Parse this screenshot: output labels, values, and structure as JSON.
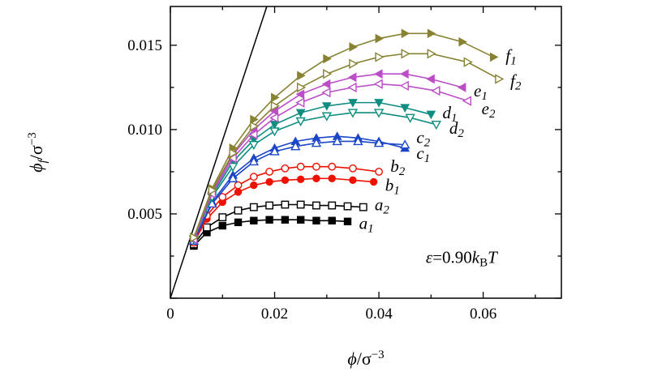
{
  "figure": {
    "kind": "scientific-plot",
    "background": "#ffffff"
  },
  "chart_data": {
    "type": "line",
    "title": "",
    "xlabel_parts": {
      "sym": "ϕ",
      "mid": "/σ",
      "sup": "−3"
    },
    "ylabel_parts": {
      "sym": "ϕ",
      "sub": "f",
      "mid": "/σ",
      "sup": "−3"
    },
    "xlim": [
      0,
      0.075
    ],
    "ylim": [
      0,
      0.0173
    ],
    "xticks": [
      {
        "v": 0,
        "label": "0"
      },
      {
        "v": 0.02,
        "label": "0.02"
      },
      {
        "v": 0.04,
        "label": "0.04"
      },
      {
        "v": 0.06,
        "label": "0.06"
      }
    ],
    "xminor": [
      0.01,
      0.03,
      0.05,
      0.07
    ],
    "yticks": [
      {
        "v": 0,
        "label": ""
      },
      {
        "v": 0.005,
        "label": "0.005"
      },
      {
        "v": 0.01,
        "label": "0.010"
      },
      {
        "v": 0.015,
        "label": "0.015"
      }
    ],
    "yminor": [
      0.0025,
      0.0075,
      0.0125
    ],
    "grid": false,
    "legend_position": "labels-at-line-ends",
    "annotation": {
      "eps": "ε",
      "eq": "=0.90",
      "k": "k",
      "ksub": "B",
      "T": "T",
      "x": 0.049,
      "y": 0.0021
    },
    "reference_line": {
      "x1": 0,
      "y1": 0,
      "x2": 0.0185,
      "y2": 0.0173,
      "color": "#000000"
    },
    "series": [
      {
        "name": "a1",
        "label_main": "a",
        "label_sub": "1",
        "color": "#000000",
        "marker": "square",
        "open": false,
        "label_pos": [
          0.0362,
          0.0044
        ],
        "x": [
          0.0045,
          0.007,
          0.01,
          0.013,
          0.016,
          0.019,
          0.022,
          0.025,
          0.028,
          0.031,
          0.034
        ],
        "y": [
          0.0031,
          0.0039,
          0.0043,
          0.0045,
          0.0046,
          0.00465,
          0.00465,
          0.00465,
          0.0046,
          0.0046,
          0.00455
        ]
      },
      {
        "name": "a2",
        "label_main": "a",
        "label_sub": "2",
        "color": "#000000",
        "marker": "square",
        "open": true,
        "label_pos": [
          0.0392,
          0.0055
        ],
        "x": [
          0.0045,
          0.007,
          0.01,
          0.013,
          0.016,
          0.019,
          0.022,
          0.025,
          0.028,
          0.031,
          0.034,
          0.037
        ],
        "y": [
          0.0032,
          0.0042,
          0.0048,
          0.0052,
          0.0054,
          0.0055,
          0.00555,
          0.00555,
          0.0055,
          0.0055,
          0.00545,
          0.0054
        ]
      },
      {
        "name": "b1",
        "label_main": "b",
        "label_sub": "1",
        "color": "#ee1100",
        "marker": "circle",
        "open": false,
        "label_pos": [
          0.0412,
          0.00665
        ],
        "x": [
          0.0045,
          0.007,
          0.01,
          0.013,
          0.016,
          0.019,
          0.022,
          0.025,
          0.028,
          0.031,
          0.035,
          0.039
        ],
        "y": [
          0.0033,
          0.0047,
          0.0057,
          0.0063,
          0.0067,
          0.0069,
          0.007,
          0.00705,
          0.0071,
          0.0071,
          0.007,
          0.0069
        ]
      },
      {
        "name": "b2",
        "label_main": "b",
        "label_sub": "2",
        "color": "#ee1100",
        "marker": "circle",
        "open": true,
        "label_pos": [
          0.0422,
          0.00778
        ],
        "x": [
          0.0045,
          0.007,
          0.01,
          0.013,
          0.016,
          0.019,
          0.022,
          0.025,
          0.028,
          0.031,
          0.035,
          0.04
        ],
        "y": [
          0.0033,
          0.0049,
          0.006,
          0.0067,
          0.0072,
          0.0075,
          0.0077,
          0.0078,
          0.0078,
          0.0078,
          0.0077,
          0.0075
        ]
      },
      {
        "name": "c1",
        "label_main": "c",
        "label_sub": "1",
        "color": "#1c46c8",
        "marker": "triangle-up",
        "open": false,
        "label_pos": [
          0.0472,
          0.00855
        ],
        "x": [
          0.0045,
          0.008,
          0.012,
          0.016,
          0.02,
          0.024,
          0.028,
          0.032,
          0.036,
          0.04,
          0.045
        ],
        "y": [
          0.0034,
          0.0057,
          0.0073,
          0.0083,
          0.0089,
          0.0093,
          0.0095,
          0.0096,
          0.0095,
          0.0093,
          0.0089
        ]
      },
      {
        "name": "c2",
        "label_main": "c",
        "label_sub": "2",
        "color": "#1c46c8",
        "marker": "triangle-up",
        "open": true,
        "label_pos": [
          0.0472,
          0.0095
        ],
        "x": [
          0.0045,
          0.008,
          0.012,
          0.016,
          0.02,
          0.024,
          0.028,
          0.032,
          0.036,
          0.04,
          0.045
        ],
        "y": [
          0.0034,
          0.0056,
          0.0071,
          0.0081,
          0.0087,
          0.009,
          0.0092,
          0.0093,
          0.0093,
          0.0092,
          0.0091
        ]
      },
      {
        "name": "d1",
        "label_main": "d",
        "label_sub": "1",
        "color": "#0e8d80",
        "marker": "triangle-down",
        "open": false,
        "label_pos": [
          0.0522,
          0.01095
        ],
        "x": [
          0.0045,
          0.008,
          0.012,
          0.016,
          0.02,
          0.025,
          0.03,
          0.035,
          0.04,
          0.045,
          0.05
        ],
        "y": [
          0.0035,
          0.0061,
          0.0081,
          0.0094,
          0.0103,
          0.011,
          0.0114,
          0.0116,
          0.0116,
          0.0113,
          0.0109
        ]
      },
      {
        "name": "d2",
        "label_main": "d",
        "label_sub": "2",
        "color": "#0e8d80",
        "marker": "triangle-down",
        "open": true,
        "label_pos": [
          0.0535,
          0.01005
        ],
        "x": [
          0.0045,
          0.008,
          0.012,
          0.016,
          0.02,
          0.025,
          0.03,
          0.035,
          0.04,
          0.046,
          0.051
        ],
        "y": [
          0.0035,
          0.006,
          0.0078,
          0.0091,
          0.0099,
          0.0105,
          0.0108,
          0.011,
          0.011,
          0.0107,
          0.0103
        ]
      },
      {
        "name": "e1",
        "label_main": "e",
        "label_sub": "1",
        "color": "#bb4ec6",
        "marker": "triangle-left",
        "open": false,
        "label_pos": [
          0.0582,
          0.01225
        ],
        "x": [
          0.0045,
          0.008,
          0.012,
          0.016,
          0.02,
          0.025,
          0.03,
          0.035,
          0.04,
          0.045,
          0.05,
          0.056
        ],
        "y": [
          0.0035,
          0.0063,
          0.0085,
          0.01,
          0.0111,
          0.0121,
          0.0127,
          0.0131,
          0.0133,
          0.0133,
          0.013,
          0.0125
        ]
      },
      {
        "name": "e2",
        "label_main": "e",
        "label_sub": "2",
        "color": "#bb4ec6",
        "marker": "triangle-left",
        "open": true,
        "label_pos": [
          0.0597,
          0.0112
        ],
        "x": [
          0.0045,
          0.008,
          0.012,
          0.016,
          0.02,
          0.025,
          0.03,
          0.035,
          0.04,
          0.045,
          0.051,
          0.057
        ],
        "y": [
          0.0035,
          0.0062,
          0.0083,
          0.0097,
          0.0107,
          0.0116,
          0.0122,
          0.0125,
          0.0127,
          0.0126,
          0.0123,
          0.0117
        ]
      },
      {
        "name": "f1",
        "label_main": "f",
        "label_sub": "1",
        "color": "#878333",
        "marker": "triangle-right",
        "open": false,
        "label_pos": [
          0.0643,
          0.01435
        ],
        "x": [
          0.0045,
          0.008,
          0.012,
          0.016,
          0.02,
          0.025,
          0.03,
          0.035,
          0.04,
          0.045,
          0.05,
          0.056,
          0.062
        ],
        "y": [
          0.0036,
          0.0065,
          0.0089,
          0.0106,
          0.0119,
          0.0132,
          0.0142,
          0.0149,
          0.0154,
          0.0157,
          0.0157,
          0.0152,
          0.0143
        ]
      },
      {
        "name": "f2",
        "label_main": "f",
        "label_sub": "2",
        "color": "#878333",
        "marker": "triangle-right",
        "open": true,
        "label_pos": [
          0.0652,
          0.01285
        ],
        "x": [
          0.0045,
          0.008,
          0.012,
          0.016,
          0.02,
          0.025,
          0.03,
          0.035,
          0.04,
          0.045,
          0.05,
          0.057,
          0.063
        ],
        "y": [
          0.0036,
          0.0064,
          0.0086,
          0.0102,
          0.0114,
          0.0125,
          0.0133,
          0.0139,
          0.0143,
          0.0145,
          0.0145,
          0.014,
          0.013
        ]
      }
    ]
  }
}
